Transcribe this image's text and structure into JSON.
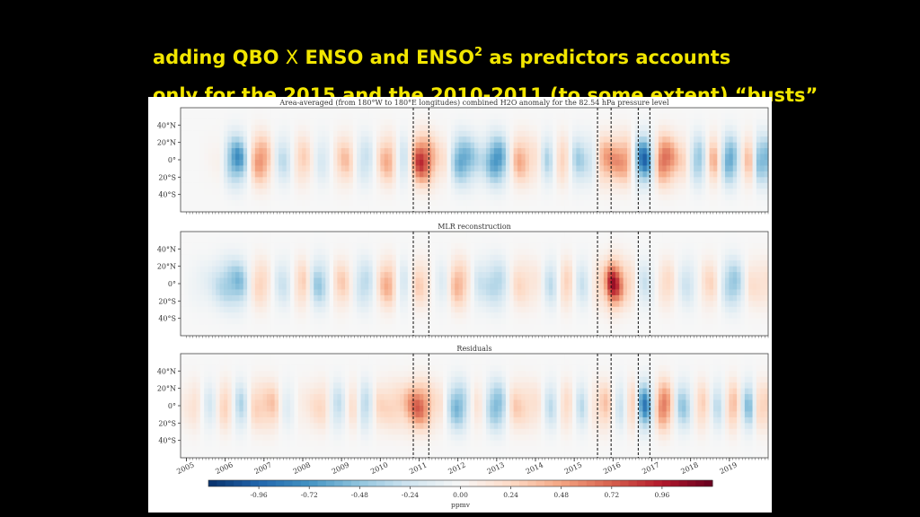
{
  "slide": {
    "title_line1_a": "adding QBO",
    "title_line1_x": "X",
    "title_line1_b": "ENSO and  ENSO",
    "title_line1_sup": "2",
    "title_line1_c": " as predictors accounts",
    "title_line2": "only for the  2015 and the 2010-2011 (to some extent) “busts”"
  },
  "chart_data": {
    "type": "heatmap",
    "panels": [
      {
        "title": "Area-averaged (from 180°W to 180°E longitudes) combined H2O anomaly for the 82.54 hPa pressure level"
      },
      {
        "title": "MLR reconstruction"
      },
      {
        "title": "Residuals"
      }
    ],
    "x_ticks": [
      "2005",
      "2006",
      "2007",
      "2008",
      "2009",
      "2010",
      "2011",
      "2012",
      "2013",
      "2014",
      "2015",
      "2016",
      "2017",
      "2018",
      "2019"
    ],
    "xlim": [
      2004.85,
      2020.0
    ],
    "y_ticks": [
      "40°N",
      "20°N",
      "0°",
      "20°S",
      "40°S"
    ],
    "ylim": [
      -60,
      60
    ],
    "vertical_lines": [
      2010.85,
      2011.25,
      2015.6,
      2015.95,
      2016.65,
      2016.95
    ],
    "colorbar": {
      "ticks": [
        "-0.96",
        "-0.72",
        "-0.48",
        "-0.24",
        "0.00",
        "0.24",
        "0.48",
        "0.72",
        "0.96"
      ],
      "range": [
        -1.2,
        1.2
      ],
      "label": "ppmv",
      "colormap": [
        "#08306b",
        "#2166ac",
        "#4393c3",
        "#92c5de",
        "#d1e5f0",
        "#f7f7f7",
        "#fddbc7",
        "#f4a582",
        "#d6604d",
        "#b2182b",
        "#67001f"
      ]
    },
    "series": [
      {
        "values_by_year": [
          [
            2005.8,
            0.05
          ],
          [
            2006.3,
            -0.75
          ],
          [
            2006.9,
            0.6
          ],
          [
            2007.5,
            -0.3
          ],
          [
            2008.0,
            0.3
          ],
          [
            2008.5,
            -0.2
          ],
          [
            2009.1,
            0.35
          ],
          [
            2009.6,
            -0.3
          ],
          [
            2010.2,
            0.45
          ],
          [
            2010.6,
            -0.25
          ],
          [
            2011.05,
            0.9
          ],
          [
            2011.6,
            0.2
          ],
          [
            2012.1,
            -0.7
          ],
          [
            2012.6,
            -0.3
          ],
          [
            2013.0,
            -0.8
          ],
          [
            2013.6,
            0.45
          ],
          [
            2014.0,
            0.2
          ],
          [
            2014.3,
            -0.35
          ],
          [
            2014.7,
            0.3
          ],
          [
            2015.1,
            -0.4
          ],
          [
            2015.4,
            -0.25
          ],
          [
            2015.8,
            0.5
          ],
          [
            2016.3,
            0.55
          ],
          [
            2016.8,
            -0.9
          ],
          [
            2017.3,
            0.75
          ],
          [
            2017.8,
            0.25
          ],
          [
            2018.2,
            -0.5
          ],
          [
            2018.6,
            0.4
          ],
          [
            2019.0,
            -0.7
          ],
          [
            2019.5,
            0.35
          ],
          [
            2019.8,
            -0.6
          ]
        ]
      },
      {
        "values_by_year": [
          [
            2005.4,
            -0.1
          ],
          [
            2006.3,
            -0.55
          ],
          [
            2006.9,
            0.3
          ],
          [
            2007.5,
            -0.25
          ],
          [
            2008.0,
            0.3
          ],
          [
            2008.4,
            -0.45
          ],
          [
            2009.0,
            0.3
          ],
          [
            2009.6,
            -0.35
          ],
          [
            2010.2,
            0.45
          ],
          [
            2010.6,
            -0.2
          ],
          [
            2011.0,
            0.3
          ],
          [
            2011.6,
            -0.15
          ],
          [
            2012.0,
            0.45
          ],
          [
            2012.6,
            -0.25
          ],
          [
            2013.0,
            -0.4
          ],
          [
            2013.6,
            0.25
          ],
          [
            2014.0,
            0.15
          ],
          [
            2014.4,
            -0.3
          ],
          [
            2014.8,
            0.3
          ],
          [
            2015.2,
            -0.25
          ],
          [
            2015.7,
            0.3
          ],
          [
            2016.0,
            0.95
          ],
          [
            2016.4,
            0.3
          ],
          [
            2016.8,
            -0.25
          ],
          [
            2017.4,
            0.25
          ],
          [
            2017.9,
            -0.25
          ],
          [
            2018.5,
            0.25
          ],
          [
            2019.1,
            -0.5
          ],
          [
            2019.6,
            0.2
          ]
        ]
      },
      {
        "values_by_year": [
          [
            2005.2,
            0.2
          ],
          [
            2005.6,
            -0.2
          ],
          [
            2006.0,
            0.3
          ],
          [
            2006.4,
            -0.35
          ],
          [
            2006.8,
            0.3
          ],
          [
            2007.2,
            0.35
          ],
          [
            2007.6,
            -0.15
          ],
          [
            2008.0,
            0.1
          ],
          [
            2008.5,
            0.25
          ],
          [
            2008.9,
            -0.3
          ],
          [
            2009.3,
            0.2
          ],
          [
            2009.6,
            -0.35
          ],
          [
            2010.0,
            0.25
          ],
          [
            2010.5,
            0.3
          ],
          [
            2011.0,
            0.7
          ],
          [
            2011.5,
            0.2
          ],
          [
            2012.0,
            -0.6
          ],
          [
            2012.5,
            0.15
          ],
          [
            2013.0,
            -0.6
          ],
          [
            2013.5,
            0.3
          ],
          [
            2014.0,
            0.2
          ],
          [
            2014.4,
            -0.3
          ],
          [
            2014.8,
            0.25
          ],
          [
            2015.2,
            -0.3
          ],
          [
            2015.5,
            0.15
          ],
          [
            2015.8,
            0.35
          ],
          [
            2016.2,
            -0.25
          ],
          [
            2016.5,
            0.3
          ],
          [
            2016.8,
            -0.8
          ],
          [
            2017.3,
            0.7
          ],
          [
            2017.8,
            -0.45
          ],
          [
            2018.3,
            0.3
          ],
          [
            2018.7,
            -0.3
          ],
          [
            2019.1,
            0.4
          ],
          [
            2019.5,
            -0.5
          ],
          [
            2019.8,
            0.3
          ]
        ]
      }
    ]
  }
}
